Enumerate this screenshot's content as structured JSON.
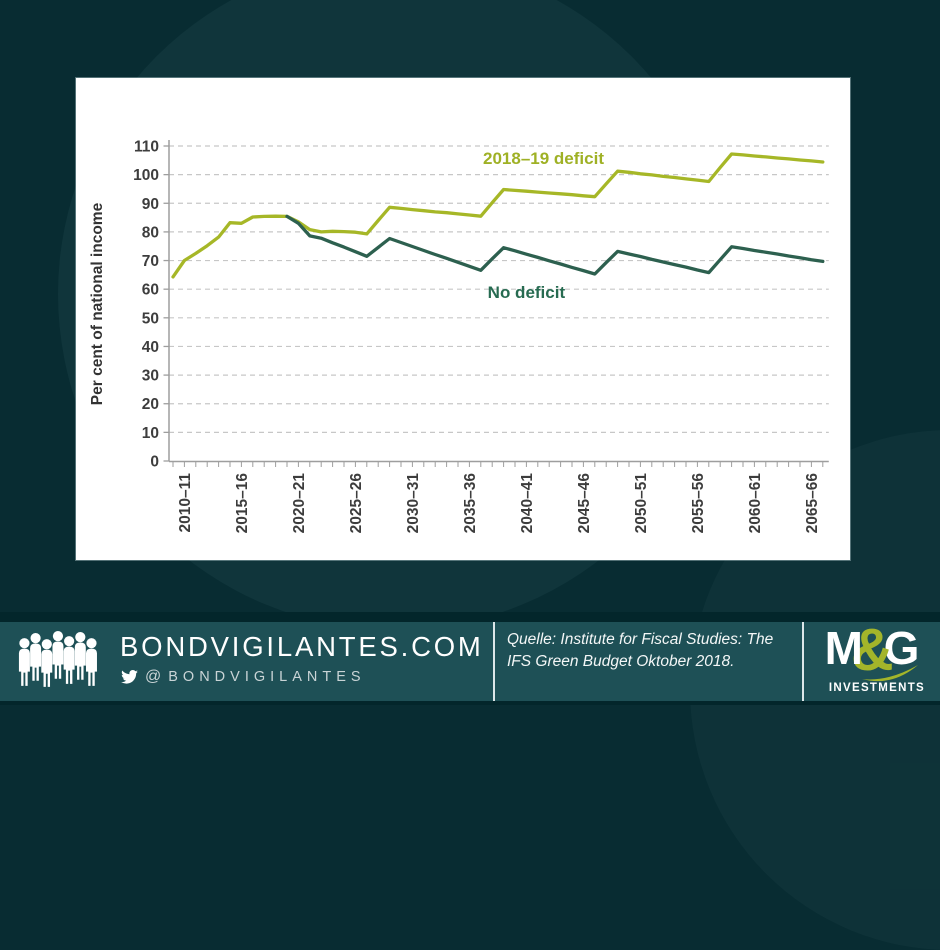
{
  "slide": {
    "background_color": "#082c32",
    "panel_color": "#ffffff"
  },
  "chart_data": {
    "type": "line",
    "title": "",
    "xlabel": "",
    "ylabel": "Per cent of national income",
    "ylim": [
      0,
      110
    ],
    "y_ticks": [
      0,
      10,
      20,
      30,
      40,
      50,
      60,
      70,
      80,
      90,
      100,
      110
    ],
    "grid": "horizontal dashed",
    "legend_position": "inline line labels",
    "x_start_year": 2009,
    "x_end_year": 2066,
    "x_minor_tick_step": 1,
    "x_tick_years": [
      2010,
      2015,
      2020,
      2025,
      2030,
      2035,
      2040,
      2045,
      2050,
      2055,
      2060,
      2065
    ],
    "x_tick_labels": [
      "2010–11",
      "2015–16",
      "2020–21",
      "2025–26",
      "2030–31",
      "2035–36",
      "2040–41",
      "2045–46",
      "2050–51",
      "2055–56",
      "2060–61",
      "2065–66"
    ],
    "axis_color": "#9e9e9e",
    "gridline_color": "#c7c7c7",
    "tick_label_color": "#3d3d3d",
    "series": [
      {
        "name": "2018–19 deficit",
        "color": "#a6b727",
        "label_color": "#9fb125",
        "label_x": 2041.5,
        "label_y": 103.7,
        "x": [
          2009,
          2010,
          2011,
          2012,
          2013,
          2014,
          2015,
          2016,
          2017,
          2018,
          2019,
          2020,
          2021,
          2022,
          2023,
          2024,
          2025,
          2026,
          2027,
          2028,
          2029,
          2030,
          2031,
          2032,
          2033,
          2034,
          2035,
          2036,
          2037,
          2038,
          2039,
          2040,
          2041,
          2042,
          2043,
          2044,
          2045,
          2046,
          2047,
          2048,
          2049,
          2050,
          2051,
          2052,
          2053,
          2054,
          2055,
          2056,
          2057,
          2058,
          2059,
          2060,
          2061,
          2062,
          2063,
          2064,
          2065,
          2066
        ],
        "values": [
          64.3,
          70.0,
          72.5,
          75.2,
          78.2,
          83.2,
          83.0,
          85.2,
          85.4,
          85.5,
          85.4,
          83.5,
          80.8,
          80.0,
          80.2,
          80.1,
          79.9,
          79.3,
          84.0,
          88.6,
          88.2,
          87.8,
          87.4,
          87.0,
          86.7,
          86.3,
          85.9,
          85.5,
          90.2,
          94.8,
          94.5,
          94.2,
          93.9,
          93.6,
          93.3,
          93.0,
          92.6,
          92.3,
          96.8,
          101.2,
          100.8,
          100.3,
          99.9,
          99.4,
          99.0,
          98.5,
          98.1,
          97.6,
          102.5,
          107.2,
          106.9,
          106.5,
          106.2,
          105.8,
          105.5,
          105.1,
          104.8,
          104.4
        ]
      },
      {
        "name": "No deficit",
        "color": "#2d604f",
        "label_color": "#276b51",
        "label_x": 2040.0,
        "label_y": 56.9,
        "x": [
          2019,
          2020,
          2021,
          2022,
          2023,
          2024,
          2025,
          2026,
          2027,
          2028,
          2029,
          2030,
          2031,
          2032,
          2033,
          2034,
          2035,
          2036,
          2037,
          2038,
          2039,
          2040,
          2041,
          2042,
          2043,
          2044,
          2045,
          2046,
          2047,
          2048,
          2049,
          2050,
          2051,
          2052,
          2053,
          2054,
          2055,
          2056,
          2057,
          2058,
          2059,
          2060,
          2061,
          2062,
          2063,
          2064,
          2065,
          2066
        ],
        "values": [
          85.4,
          83.0,
          78.6,
          77.8,
          76.2,
          74.7,
          73.1,
          71.5,
          74.6,
          77.7,
          76.3,
          74.9,
          73.5,
          72.1,
          70.8,
          69.4,
          68.0,
          66.6,
          70.6,
          74.5,
          73.4,
          72.2,
          71.1,
          69.9,
          68.8,
          67.6,
          66.5,
          65.3,
          69.3,
          73.2,
          72.3,
          71.4,
          70.4,
          69.5,
          68.6,
          67.7,
          66.7,
          65.8,
          70.3,
          74.8,
          74.2,
          73.5,
          72.9,
          72.3,
          71.6,
          71.0,
          70.3,
          69.7
        ]
      }
    ]
  },
  "footer": {
    "site": "BONDVIGILANTES.COM",
    "twitter_at": "@",
    "twitter_name": "BONDVIGILANTES",
    "source_line1": "Quelle: Institute for Fiscal Studies: The",
    "source_line2": "IFS Green Budget Oktober 2018.",
    "logo_m": "M",
    "logo_amp": "&",
    "logo_g": "G",
    "logo_sub": "INVESTMENTS",
    "band_color": "#1e5056",
    "accent_green": "#a3b52a"
  }
}
